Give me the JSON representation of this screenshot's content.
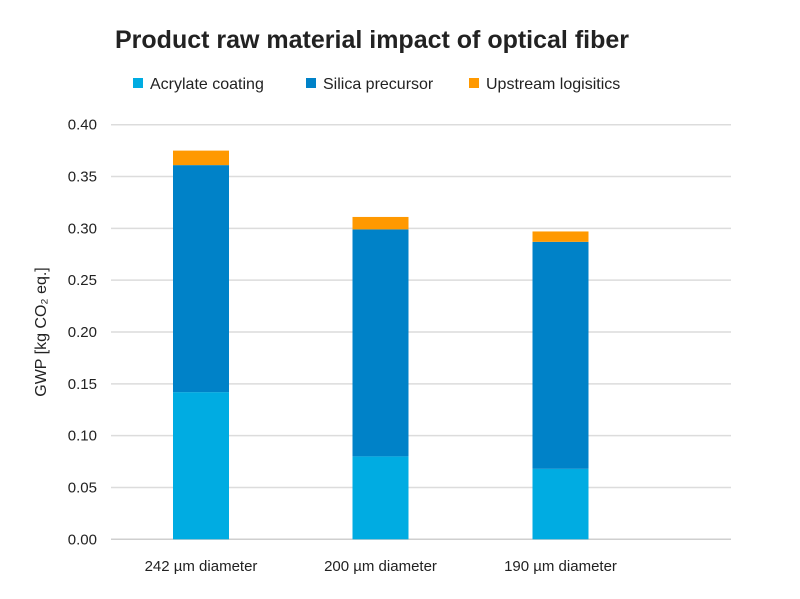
{
  "chart_data": {
    "type": "bar",
    "stacked": true,
    "title": "Product raw material impact of optical fiber",
    "xlabel": "",
    "ylabel": "GWP [kg CO₂ eq.]",
    "ylim": [
      0,
      0.4
    ],
    "yticks": [
      "0.00",
      "0.05",
      "0.10",
      "0.15",
      "0.20",
      "0.25",
      "0.30",
      "0.35",
      "0.40"
    ],
    "grid": true,
    "legend_position": "top",
    "categories": [
      "242 µm diameter",
      "200 µm diameter",
      "190 µm diameter"
    ],
    "series": [
      {
        "name": "Acrylate coating",
        "color": "#00ACE2",
        "values": [
          0.142,
          0.08,
          0.068
        ]
      },
      {
        "name": "Silica precursor",
        "color": "#0082C8",
        "values": [
          0.219,
          0.219,
          0.219
        ]
      },
      {
        "name": "Upstream logisitics",
        "color": "#FF9900",
        "values": [
          0.014,
          0.012,
          0.01
        ]
      }
    ]
  }
}
